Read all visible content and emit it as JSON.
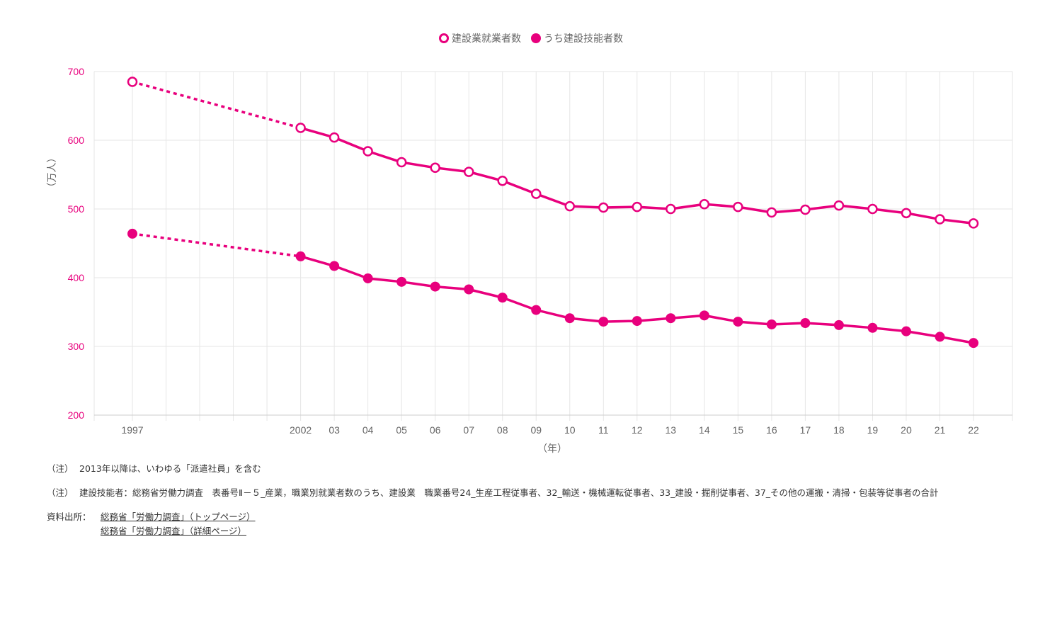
{
  "chart_data": {
    "type": "line",
    "categories": [
      "1997",
      "2002",
      "03",
      "04",
      "05",
      "06",
      "07",
      "08",
      "09",
      "10",
      "11",
      "12",
      "13",
      "14",
      "15",
      "16",
      "17",
      "18",
      "19",
      "20",
      "21",
      "22"
    ],
    "x_years": [
      1997,
      2002,
      2003,
      2004,
      2005,
      2006,
      2007,
      2008,
      2009,
      2010,
      2011,
      2012,
      2013,
      2014,
      2015,
      2016,
      2017,
      2018,
      2019,
      2020,
      2021,
      2022
    ],
    "series": [
      {
        "name": "建設業就業者数",
        "marker": "open",
        "values": [
          685,
          618,
          604,
          584,
          568,
          560,
          554,
          541,
          522,
          504,
          502,
          503,
          500,
          507,
          503,
          495,
          499,
          505,
          500,
          494,
          485,
          479
        ]
      },
      {
        "name": "うち建設技能者数",
        "marker": "filled",
        "values": [
          464,
          431,
          417,
          399,
          394,
          387,
          383,
          371,
          353,
          341,
          336,
          337,
          341,
          345,
          336,
          332,
          334,
          331,
          327,
          322,
          314,
          305
        ]
      }
    ],
    "dashed_between": [
      "1997",
      "2002"
    ],
    "ylabel": "（万人）",
    "xlabel": "（年）",
    "ylim": [
      200,
      700
    ],
    "yticks": [
      "200",
      "300",
      "400",
      "500",
      "600",
      "700"
    ],
    "grid": true,
    "legend": "top-center",
    "colors": {
      "line": "#e8007d",
      "tick": "#e8007d",
      "grid": "#e6e6e6"
    }
  },
  "notes": {
    "note1_prefix": "（注）",
    "note1_text": "2013年以降は、いわゆる「派遣社員」を含む",
    "note2_prefix": "（注）",
    "note2_text": "建設技能者：総務省労働力調査　表番号Ⅱ－５_産業，職業別就業者数のうち、建設業　職業番号24_生産工程従事者、32_輸送・機械運転従事者、33_建設・掘削従事者、37_その他の運搬・清掃・包装等従事者の合計"
  },
  "source": {
    "label": "資料出所：",
    "link1": "総務省「労働力調査」（トップページ）",
    "link2": "総務省「労働力調査」（詳細ページ）"
  }
}
